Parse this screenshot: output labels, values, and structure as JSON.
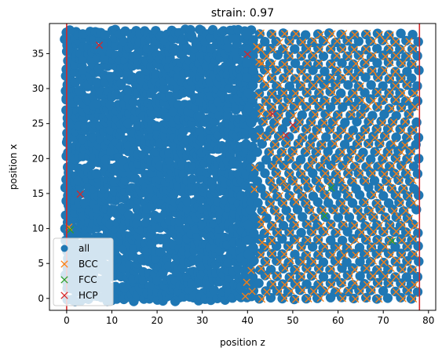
{
  "chart_data": {
    "type": "scatter",
    "title": "strain: 0.97",
    "xlabel": "position z",
    "ylabel": "position x",
    "xlim": [
      -3.8,
      81.6
    ],
    "ylim": [
      -1.7,
      39.3
    ],
    "xticks": [
      0,
      10,
      20,
      30,
      40,
      50,
      60,
      70,
      80
    ],
    "yticks": [
      0,
      5,
      10,
      15,
      20,
      25,
      30,
      35
    ],
    "grid": false,
    "legend_position": "lower-left",
    "boundaries": {
      "color": "#d62728",
      "x": [
        0,
        78
      ]
    },
    "series": [
      {
        "name": "all",
        "marker": "circle",
        "color": "#1f77b4",
        "regions": [
          {
            "kind": "dense",
            "x_range": [
              0,
              41
            ],
            "y_range": [
              0,
              38
            ]
          },
          {
            "kind": "lattice",
            "x_range": [
              40,
              78
            ],
            "y_range": [
              0,
              38
            ]
          }
        ]
      },
      {
        "name": "BCC",
        "marker": "x",
        "color": "#ff7f0e",
        "regions": [
          {
            "kind": "lattice",
            "x_range": [
              43,
              77
            ],
            "y_range": [
              0,
              38
            ]
          }
        ],
        "points": [
          {
            "x": 0.5,
            "y": 10.2
          },
          {
            "x": 39.5,
            "y": 0.3
          },
          {
            "x": 39.8,
            "y": 2.3
          },
          {
            "x": 41.0,
            "y": 1.0
          },
          {
            "x": 40.8,
            "y": 4.0
          },
          {
            "x": 41.6,
            "y": 18.7
          },
          {
            "x": 41.5,
            "y": 15.6
          },
          {
            "x": 42.0,
            "y": 36.0
          },
          {
            "x": 42.5,
            "y": 33.8
          },
          {
            "x": 42.8,
            "y": 23.2
          },
          {
            "x": 43.0,
            "y": 11.3
          },
          {
            "x": 43.2,
            "y": 8.0
          },
          {
            "x": 42.5,
            "y": 29.0
          },
          {
            "x": 43.0,
            "y": 26.4
          }
        ]
      },
      {
        "name": "FCC",
        "marker": "x",
        "color": "#2ca02c",
        "points": [
          {
            "x": 0.8,
            "y": 9.8
          },
          {
            "x": 57.0,
            "y": 11.8
          },
          {
            "x": 58.5,
            "y": 15.8
          },
          {
            "x": 72.0,
            "y": 8.2
          }
        ]
      },
      {
        "name": "HCP",
        "marker": "x",
        "color": "#d62728",
        "points": [
          {
            "x": 7.2,
            "y": 36.2
          },
          {
            "x": 40.0,
            "y": 34.9
          },
          {
            "x": 3.0,
            "y": 14.9
          },
          {
            "x": 45.5,
            "y": 26.4
          },
          {
            "x": 48.5,
            "y": 23.3
          },
          {
            "x": 50.0,
            "y": 24.8
          }
        ]
      }
    ]
  }
}
